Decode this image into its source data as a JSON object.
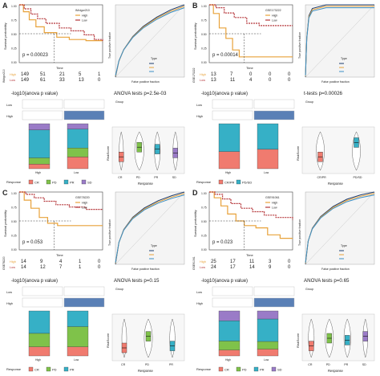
{
  "panels": [
    {
      "letter": "A",
      "km": {
        "legend_title": "IMvigor210",
        "legend_items": [
          "High",
          "Low"
        ],
        "ylabel": "Survival probability",
        "xlabel": "Time",
        "pvalue": "p = 0.00023",
        "risk_rows": [
          {
            "label": "High",
            "values": [
              "149",
              "51",
              "21",
              "5",
              "1"
            ]
          },
          {
            "label": "Low",
            "values": [
              "149",
              "61",
              "33",
              "13",
              "0"
            ]
          }
        ],
        "side_label": "IMvigor210"
      },
      "roc": {
        "xlabel": "False positive fraction",
        "ylabel": "True positive fraction",
        "legend_title": "Type"
      },
      "bars": {
        "title": "-log10(anova p value)",
        "row_labels": [
          "Low",
          "High"
        ],
        "group_labels": [
          "High",
          "Low"
        ],
        "legend_title": "Response",
        "legend_items": [
          "CR",
          "PD",
          "PR",
          "SD"
        ]
      },
      "violin": {
        "title": "ANOVA tests p=2.5e-03",
        "xlabel": "Response",
        "ylabel": "RiskScore",
        "categories": [
          "CR",
          "PD",
          "PR",
          "SD"
        ],
        "legend_title": "Group"
      }
    },
    {
      "letter": "B",
      "km": {
        "legend_title": "GSE173222",
        "legend_items": [
          "High",
          "Low"
        ],
        "ylabel": "Survival probability",
        "xlabel": "Time",
        "pvalue": "p = 0.00014",
        "risk_rows": [
          {
            "label": "High",
            "values": [
              "13",
              "7",
              "0",
              "0",
              "0"
            ]
          },
          {
            "label": "Low",
            "values": [
              "13",
              "11",
              "4",
              "0",
              "0"
            ]
          }
        ],
        "side_label": "GSE173222"
      },
      "roc": {
        "xlabel": "False positive fraction",
        "ylabel": "True positive fraction",
        "legend_title": "Type"
      },
      "bars": {
        "title": "-log10(anova p value)",
        "row_labels": [
          "Low",
          "High"
        ],
        "group_labels": [
          "High",
          "Low"
        ],
        "legend_title": "Response",
        "legend_items": [
          "CR/PR",
          "PD/SD"
        ]
      },
      "violin": {
        "title": "t-tests p=0.00026",
        "xlabel": "Response",
        "ylabel": "RiskScore",
        "categories": [
          "CR/PR",
          "PD/SD"
        ],
        "legend_title": "Group"
      }
    },
    {
      "letter": "C",
      "km": {
        "legend_title": "GSE78220",
        "legend_items": [
          "High",
          "Low"
        ],
        "ylabel": "Survival probability",
        "xlabel": "Time",
        "pvalue": "p = 0.053",
        "risk_rows": [
          {
            "label": "High",
            "values": [
              "14",
              "9",
              "4",
              "1",
              "0"
            ]
          },
          {
            "label": "Low",
            "values": [
              "14",
              "12",
              "7",
              "1",
              "0"
            ]
          }
        ],
        "side_label": "GSE78220"
      },
      "roc": {
        "xlabel": "False positive fraction",
        "ylabel": "True positive fraction",
        "legend_title": "Type"
      },
      "bars": {
        "title": "-log10(anova p value)",
        "row_labels": [
          "Low",
          "High"
        ],
        "group_labels": [
          "High",
          "Low"
        ],
        "legend_title": "Response",
        "legend_items": [
          "CR",
          "PD",
          "PR"
        ]
      },
      "violin": {
        "title": "ANOVA tests p=0.15",
        "xlabel": "Response",
        "ylabel": "RiskScore",
        "categories": [
          "CR",
          "PD",
          "PR"
        ],
        "legend_title": "Group"
      }
    },
    {
      "letter": "D",
      "km": {
        "legend_title": "GSE91061",
        "legend_items": [
          "High",
          "Low"
        ],
        "ylabel": "Survival probability",
        "xlabel": "Time",
        "pvalue": "p = 0.023",
        "risk_rows": [
          {
            "label": "High",
            "values": [
              "25",
              "17",
              "11",
              "3",
              "0"
            ]
          },
          {
            "label": "Low",
            "values": [
              "24",
              "17",
              "14",
              "9",
              "0"
            ]
          }
        ],
        "side_label": "GSE91061"
      },
      "roc": {
        "xlabel": "False positive fraction",
        "ylabel": "True positive fraction",
        "legend_title": "Type"
      },
      "bars": {
        "title": "-log10(anova p value)",
        "row_labels": [
          "Low",
          "High"
        ],
        "group_labels": [
          "High",
          "Low"
        ],
        "legend_title": "Response",
        "legend_items": [
          "CR",
          "PD",
          "PR",
          "SD"
        ]
      },
      "violin": {
        "title": "ANOVA tests p=0.65",
        "xlabel": "Response",
        "ylabel": "RiskScore",
        "categories": [
          "CR",
          "PD",
          "PR",
          "SD"
        ],
        "legend_title": "Group"
      }
    }
  ],
  "colors": {
    "high": "#e8a23a",
    "low": "#b5363a",
    "stat_box_fill": "#5a80b6",
    "CR": "#f07b6f",
    "PD": "#7fc24a",
    "PR": "#36b0c6",
    "SD": "#9a7bc7",
    "CRPR": "#f07b6f",
    "PDSD": "#36b0c6"
  }
}
